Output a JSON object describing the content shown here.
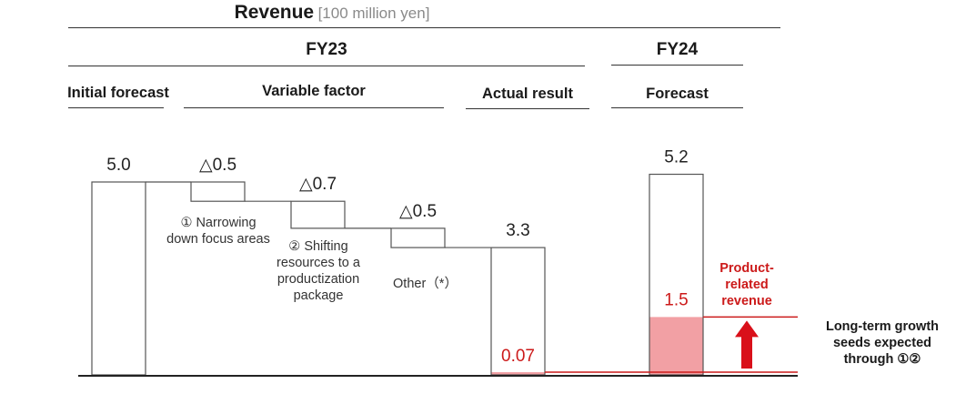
{
  "header": {
    "title": "Revenue",
    "unit": "[100 million yen]",
    "fy23": "FY23",
    "fy24": "FY24",
    "col_initial": "Initial forecast",
    "col_variable": "Variable factor",
    "col_actual": "Actual result",
    "col_forecast": "Forecast"
  },
  "annotations": {
    "factor1": "① Narrowing down focus areas",
    "factor2": "② Shifting resources to a productization package",
    "factor3": "Other（*）",
    "product_revenue": "Product-related revenue",
    "growth_seeds": "Long-term growth seeds expected through ①②"
  },
  "colors": {
    "product_fill": "#f2a0a4",
    "accent_red": "#cc1a1a",
    "bar_outline": "#555555",
    "axis": "#222222"
  },
  "chart_data": {
    "type": "waterfall",
    "ylim": [
      0,
      5.5
    ],
    "bars": [
      {
        "category": "Initial forecast",
        "value": 5.0,
        "label": "5.0",
        "kind": "total"
      },
      {
        "category": "① Narrowing down focus areas",
        "value": -0.5,
        "label": "△0.5",
        "kind": "decrease"
      },
      {
        "category": "② Shifting resources to a productization package",
        "value": -0.7,
        "label": "△0.7",
        "kind": "decrease"
      },
      {
        "category": "Other（*）",
        "value": -0.5,
        "label": "△0.5",
        "kind": "decrease"
      },
      {
        "category": "Actual result",
        "value": 3.3,
        "label": "3.3",
        "kind": "total",
        "product_related": 0.07,
        "product_label": "0.07"
      },
      {
        "category": "Forecast",
        "value": 5.2,
        "label": "5.2",
        "kind": "total",
        "product_related": 1.5,
        "product_label": "1.5"
      }
    ]
  }
}
